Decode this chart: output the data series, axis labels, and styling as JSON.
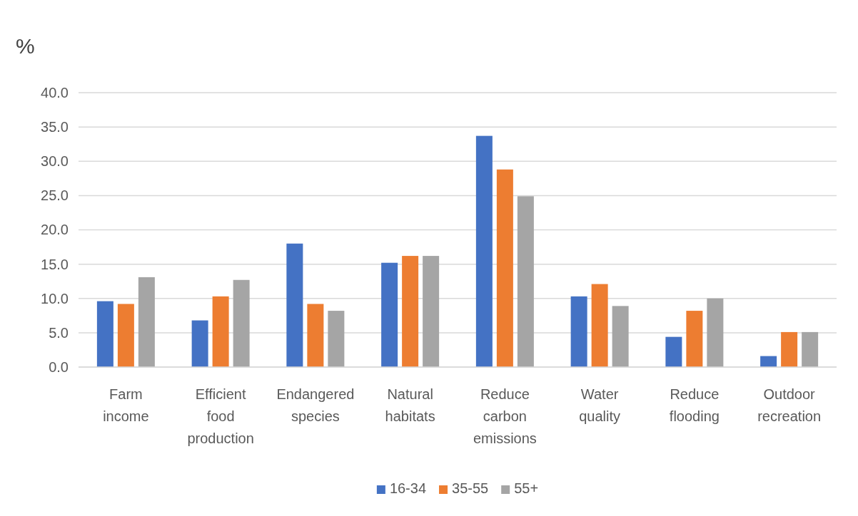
{
  "chart_data": {
    "type": "bar",
    "ylabel": "%",
    "categories": [
      "Farm income",
      "Efficient food production",
      "Endangered species",
      "Natural habitats",
      "Reduce carbon emissions",
      "Water quality",
      "Reduce flooding",
      "Outdoor recreation"
    ],
    "series": [
      {
        "name": "16-34",
        "color": "#4472c4",
        "values": [
          9.6,
          6.8,
          18.0,
          15.2,
          33.7,
          10.3,
          4.4,
          1.6
        ]
      },
      {
        "name": "35-55",
        "color": "#ed7d31",
        "values": [
          9.2,
          10.3,
          9.2,
          16.2,
          28.8,
          12.1,
          8.2,
          5.1
        ]
      },
      {
        "name": "55+",
        "color": "#a5a5a5",
        "values": [
          13.1,
          12.7,
          8.2,
          16.2,
          24.9,
          8.9,
          10.0,
          5.1
        ]
      }
    ],
    "ylim": [
      0,
      40
    ],
    "yticks": [
      {
        "value": 0,
        "label": "0.0"
      },
      {
        "value": 5,
        "label": "5.0"
      },
      {
        "value": 10,
        "label": "10.0"
      },
      {
        "value": 15,
        "label": "15.0"
      },
      {
        "value": 20,
        "label": "20.0"
      },
      {
        "value": 25,
        "label": "25.0"
      },
      {
        "value": 30,
        "label": "30.0"
      },
      {
        "value": 35,
        "label": "35.0"
      },
      {
        "value": 40,
        "label": "40.0"
      }
    ],
    "grid": "y",
    "legend": "bottom"
  }
}
